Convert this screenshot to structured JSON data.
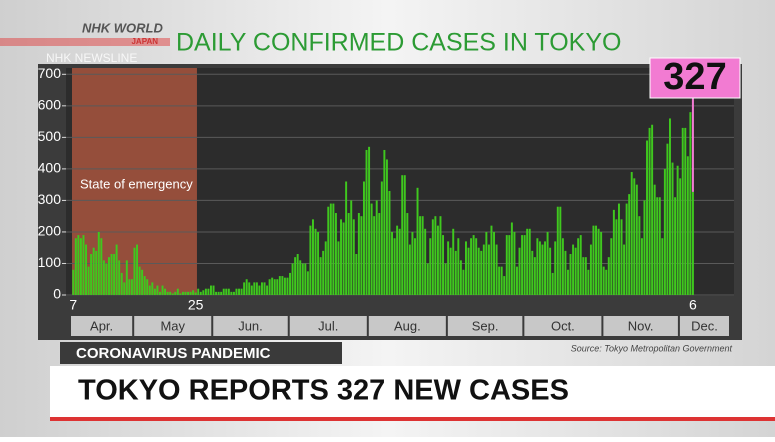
{
  "header": {
    "logo": "NHK WORLD",
    "logo_sub": "JAPAN",
    "program": "NHK NEWSLINE"
  },
  "chart_data": {
    "type": "bar",
    "title": "DAILY CONFIRMED CASES IN TOKYO",
    "categories": [
      "7",
      null,
      null,
      null,
      null,
      null,
      null,
      null,
      null,
      null,
      null,
      null,
      null,
      null,
      null,
      null,
      null,
      null,
      null,
      null,
      null,
      null,
      null,
      null,
      null,
      null,
      null,
      null,
      null,
      null,
      null,
      null,
      null,
      null,
      null,
      null,
      null,
      null,
      null,
      null,
      null,
      null,
      null,
      null,
      null,
      null,
      null,
      null,
      "25",
      null,
      null,
      null,
      null,
      null,
      null,
      null,
      null,
      null,
      null,
      null,
      null,
      null,
      null,
      null,
      null,
      null,
      null,
      null,
      null,
      null,
      null,
      null,
      null,
      null,
      null,
      null,
      null,
      null,
      null,
      null,
      null,
      null,
      null,
      null,
      null,
      null,
      null,
      null,
      null,
      null,
      null,
      null,
      null,
      null,
      null,
      null,
      null,
      null,
      null,
      null,
      null,
      null,
      null,
      null,
      null,
      null,
      null,
      null,
      null,
      null,
      null,
      null,
      null,
      null,
      null,
      null,
      null,
      null,
      null,
      null,
      null,
      null,
      null,
      null,
      null,
      null,
      null,
      null,
      null,
      null,
      null,
      null,
      null,
      null,
      null,
      null,
      null,
      null,
      null,
      null,
      null,
      null,
      null,
      null,
      null,
      null,
      null,
      null,
      null,
      null,
      null,
      null,
      null,
      null,
      null,
      null,
      null,
      null,
      null,
      null,
      null,
      null,
      null,
      null,
      null,
      null,
      null,
      null,
      null,
      null,
      null,
      null,
      null,
      null,
      null,
      null,
      null,
      null,
      null,
      null,
      null,
      null,
      null,
      null,
      null,
      null,
      null,
      null,
      null,
      null,
      null,
      null,
      null,
      null,
      null,
      null,
      null,
      null,
      null,
      null,
      null,
      null,
      null,
      null,
      null,
      null,
      null,
      null,
      null,
      null,
      null,
      null,
      null,
      null,
      null,
      null,
      null,
      null,
      null,
      null,
      null,
      null,
      null,
      null,
      null,
      null,
      null,
      null,
      null,
      null,
      null,
      null,
      null,
      null,
      null,
      null,
      null,
      null,
      null,
      null,
      null,
      null,
      null,
      "6"
    ],
    "months": [
      "Apr.",
      "May",
      "Jun.",
      "Jul.",
      "Aug.",
      "Sep.",
      "Oct.",
      "Nov.",
      "Dec."
    ],
    "values": [
      80,
      180,
      190,
      180,
      190,
      160,
      90,
      130,
      150,
      140,
      200,
      180,
      110,
      100,
      120,
      130,
      130,
      160,
      110,
      70,
      40,
      110,
      50,
      50,
      150,
      160,
      90,
      80,
      60,
      50,
      30,
      40,
      20,
      30,
      10,
      30,
      20,
      10,
      10,
      5,
      10,
      20,
      5,
      10,
      10,
      10,
      10,
      15,
      8,
      20,
      10,
      15,
      20,
      20,
      30,
      30,
      10,
      10,
      10,
      20,
      20,
      20,
      10,
      10,
      20,
      20,
      20,
      40,
      50,
      40,
      30,
      40,
      40,
      30,
      40,
      40,
      30,
      50,
      55,
      50,
      50,
      60,
      60,
      55,
      55,
      70,
      100,
      120,
      130,
      110,
      100,
      100,
      75,
      220,
      240,
      210,
      200,
      120,
      140,
      170,
      280,
      290,
      290,
      260,
      170,
      240,
      230,
      360,
      260,
      300,
      240,
      130,
      260,
      250,
      360,
      460,
      470,
      290,
      250,
      300,
      260,
      360,
      460,
      430,
      330,
      200,
      180,
      220,
      210,
      380,
      380,
      260,
      160,
      200,
      180,
      340,
      250,
      250,
      210,
      100,
      180,
      240,
      250,
      220,
      250,
      190,
      100,
      170,
      150,
      210,
      140,
      180,
      110,
      80,
      170,
      150,
      180,
      190,
      180,
      150,
      140,
      160,
      200,
      160,
      220,
      200,
      160,
      90,
      90,
      60,
      190,
      190,
      230,
      200,
      90,
      150,
      190,
      190,
      210,
      210,
      140,
      120,
      180,
      170,
      160,
      170,
      200,
      150,
      70,
      170,
      280,
      280,
      180,
      140,
      80,
      130,
      160,
      150,
      180,
      190,
      120,
      120,
      80,
      160,
      220,
      220,
      210,
      200,
      90,
      80,
      120,
      180,
      270,
      240,
      290,
      240,
      160,
      290,
      320,
      390,
      370,
      350,
      250,
      180,
      300,
      490,
      530,
      540,
      350,
      310,
      310,
      180,
      400,
      480,
      560,
      420,
      310,
      410,
      370,
      530,
      530,
      440,
      580,
      327
    ],
    "color": "#3fc81e",
    "highlight_color": "#f27bd2",
    "ylim": [
      0,
      720
    ],
    "yticks": [
      0,
      100,
      200,
      300,
      400,
      500,
      600,
      700
    ],
    "grid": true,
    "annotation": "State of emergency",
    "source": "Source: Tokyo Metropolitan Government"
  },
  "tag": "CORONAVIRUS PANDEMIC",
  "headline": "TOKYO REPORTS 327 NEW CASES"
}
